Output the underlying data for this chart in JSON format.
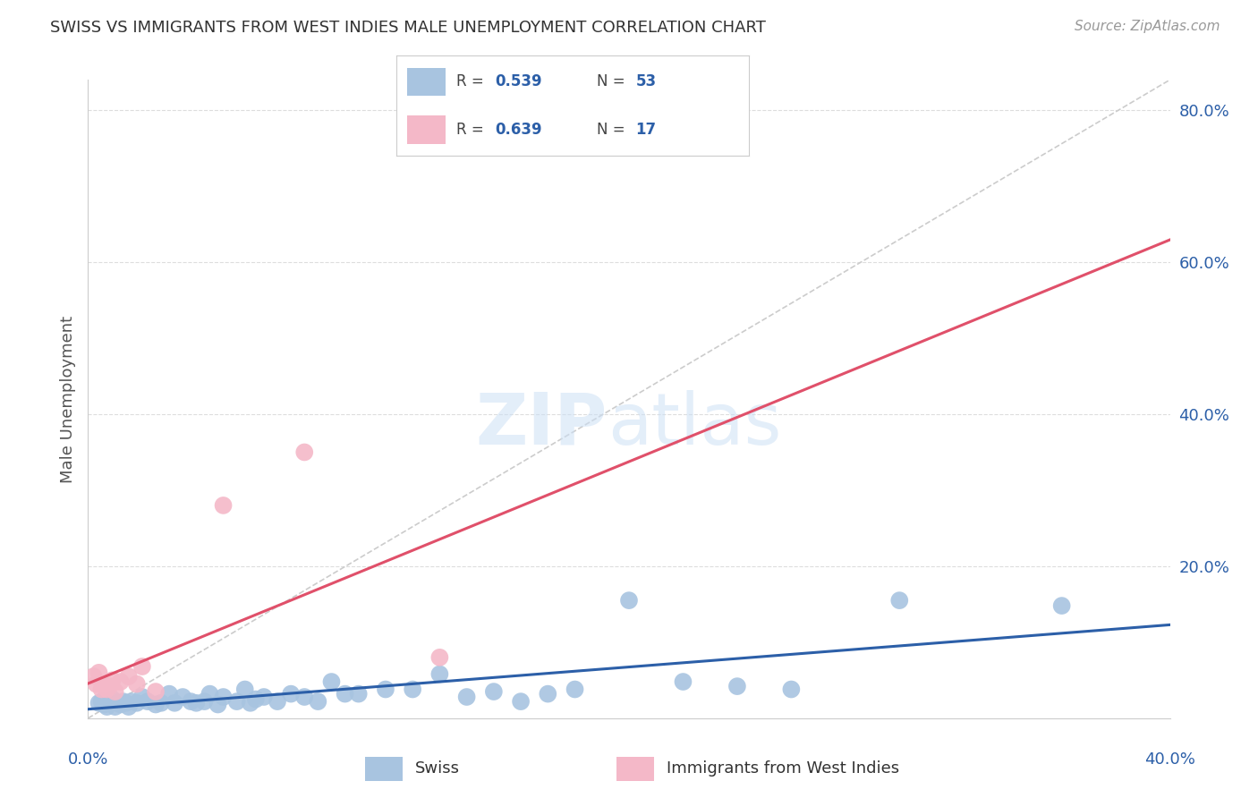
{
  "title": "SWISS VS IMMIGRANTS FROM WEST INDIES MALE UNEMPLOYMENT CORRELATION CHART",
  "source": "Source: ZipAtlas.com",
  "ylabel": "Male Unemployment",
  "xlim": [
    0.0,
    0.4
  ],
  "ylim": [
    0.0,
    0.84
  ],
  "yticks": [
    0.0,
    0.2,
    0.4,
    0.6,
    0.8
  ],
  "swiss_color": "#a8c4e0",
  "swiss_line_color": "#2c5fa8",
  "west_color": "#f4b8c8",
  "west_line_color": "#e0506a",
  "diagonal_color": "#cccccc",
  "background_color": "#ffffff",
  "grid_color": "#dddddd",
  "legend_swiss_r": "0.539",
  "legend_swiss_n": "53",
  "legend_west_r": "0.639",
  "legend_west_n": "17",
  "swiss_x": [
    0.004,
    0.005,
    0.006,
    0.007,
    0.008,
    0.009,
    0.01,
    0.011,
    0.012,
    0.013,
    0.014,
    0.015,
    0.016,
    0.018,
    0.02,
    0.022,
    0.025,
    0.027,
    0.03,
    0.032,
    0.035,
    0.038,
    0.04,
    0.043,
    0.045,
    0.048,
    0.05,
    0.055,
    0.058,
    0.06,
    0.062,
    0.065,
    0.07,
    0.075,
    0.08,
    0.085,
    0.09,
    0.095,
    0.1,
    0.11,
    0.12,
    0.13,
    0.14,
    0.15,
    0.16,
    0.17,
    0.18,
    0.2,
    0.22,
    0.24,
    0.26,
    0.3,
    0.36
  ],
  "swiss_y": [
    0.02,
    0.022,
    0.018,
    0.015,
    0.02,
    0.025,
    0.015,
    0.02,
    0.018,
    0.022,
    0.02,
    0.015,
    0.022,
    0.02,
    0.028,
    0.022,
    0.018,
    0.02,
    0.032,
    0.02,
    0.028,
    0.022,
    0.02,
    0.022,
    0.032,
    0.018,
    0.028,
    0.022,
    0.038,
    0.02,
    0.025,
    0.028,
    0.022,
    0.032,
    0.028,
    0.022,
    0.048,
    0.032,
    0.032,
    0.038,
    0.038,
    0.058,
    0.028,
    0.035,
    0.022,
    0.032,
    0.038,
    0.155,
    0.048,
    0.042,
    0.038,
    0.155,
    0.148
  ],
  "west_x": [
    0.002,
    0.003,
    0.004,
    0.005,
    0.006,
    0.007,
    0.008,
    0.009,
    0.01,
    0.012,
    0.015,
    0.018,
    0.02,
    0.025,
    0.05,
    0.08,
    0.13
  ],
  "west_y": [
    0.055,
    0.045,
    0.06,
    0.038,
    0.042,
    0.038,
    0.042,
    0.05,
    0.035,
    0.048,
    0.055,
    0.045,
    0.068,
    0.035,
    0.28,
    0.35,
    0.08
  ]
}
